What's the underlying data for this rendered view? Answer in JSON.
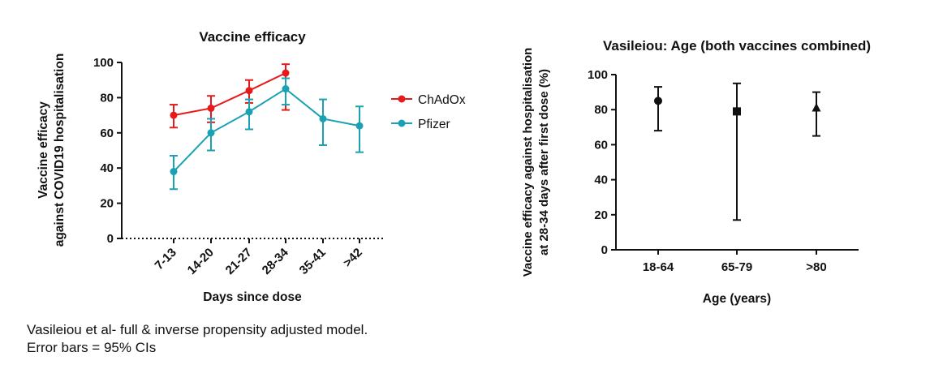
{
  "colors": {
    "chadox": "#e41a1c",
    "pfizer": "#1ba1b4",
    "axis": "#111111"
  },
  "caption": {
    "line1": "Vasileiou et al- full & inverse propensity adjusted model.",
    "line2": "Error bars = 95% CIs"
  },
  "chart_data": [
    {
      "type": "line",
      "title": "Vaccine efficacy",
      "xlabel": "Days since dose",
      "ylabel": [
        "Vaccine efficacy",
        "against COVID19 hospitalisation"
      ],
      "categories": [
        "7-13",
        "14-20",
        "21-27",
        "28-34",
        "35-41",
        ">42"
      ],
      "ylim": [
        0,
        100
      ],
      "yticks": [
        0,
        20,
        40,
        60,
        80,
        100
      ],
      "reference_line": 0,
      "legend_position": "right",
      "series": [
        {
          "name": "ChAdOx",
          "color_key": "chadox",
          "values": [
            70,
            74,
            84,
            94,
            null,
            null
          ],
          "ci_low": [
            63,
            66,
            77,
            73,
            null,
            null
          ],
          "ci_high": [
            76,
            81,
            90,
            99,
            null,
            null
          ]
        },
        {
          "name": "Pfizer",
          "color_key": "pfizer",
          "values": [
            38,
            60,
            72,
            85,
            68,
            64
          ],
          "ci_low": [
            28,
            50,
            62,
            76,
            53,
            49
          ],
          "ci_high": [
            47,
            68,
            79,
            91,
            79,
            75
          ]
        }
      ]
    },
    {
      "type": "scatter",
      "title": "Vasileiou: Age (both vaccines combined)",
      "xlabel": "Age (years)",
      "ylabel": [
        "Vaccine efficacy against hospitalisation",
        "at 28-34 days after first dose (%)"
      ],
      "categories": [
        "18-64",
        "65-79",
        ">80"
      ],
      "ylim": [
        0,
        100
      ],
      "yticks": [
        0,
        20,
        40,
        60,
        80,
        100
      ],
      "markers": [
        "circle",
        "square",
        "triangle"
      ],
      "values": [
        85,
        79,
        81
      ],
      "ci_low": [
        68,
        17,
        65
      ],
      "ci_high": [
        93,
        95,
        90
      ]
    }
  ]
}
